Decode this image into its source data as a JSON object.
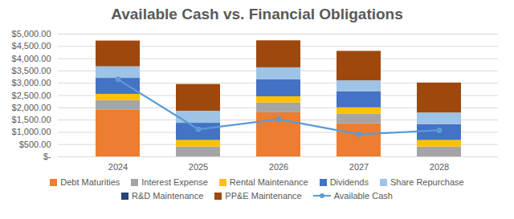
{
  "chart_data": {
    "type": "bar",
    "title": "Available Cash vs. Financial Obligations",
    "stacked": true,
    "grid": true,
    "legend": "bottom",
    "categories": [
      "2024",
      "2025",
      "2026",
      "2027",
      "2028"
    ],
    "ylim": [
      0,
      5000
    ],
    "yticks": [
      {
        "value": 0,
        "label": "$-"
      },
      {
        "value": 500,
        "label": "$500.00"
      },
      {
        "value": 1000,
        "label": "$1,000.00"
      },
      {
        "value": 1500,
        "label": "$1,500.00"
      },
      {
        "value": 2000,
        "label": "$2,000.00"
      },
      {
        "value": 2500,
        "label": "$2,500.00"
      },
      {
        "value": 3000,
        "label": "$3,000.00"
      },
      {
        "value": 3500,
        "label": "$3,500.00"
      },
      {
        "value": 4000,
        "label": "$4,000.00"
      },
      {
        "value": 4500,
        "label": "$4,500.00"
      },
      {
        "value": 5000,
        "label": "$5,000.00"
      }
    ],
    "series": [
      {
        "name": "Debt Maturities",
        "color": "#ED7D31",
        "values": [
          1900,
          0,
          1800,
          1350,
          0
        ]
      },
      {
        "name": "Interest Expense",
        "color": "#A5A5A5",
        "values": [
          400,
          400,
          400,
          400,
          400
        ]
      },
      {
        "name": "Rental Maintenance",
        "color": "#FFC000",
        "values": [
          250,
          270,
          250,
          250,
          270
        ]
      },
      {
        "name": "Dividends",
        "color": "#4472C4",
        "values": [
          650,
          700,
          700,
          650,
          650
        ]
      },
      {
        "name": "Share Repurchase",
        "color": "#9DC3E6",
        "values": [
          470,
          490,
          480,
          450,
          470
        ]
      },
      {
        "name": "R&D Maintenance",
        "color": "#264478",
        "values": [
          0,
          0,
          0,
          0,
          0
        ]
      },
      {
        "name": "PP&E Maintenance",
        "color": "#9E480E",
        "values": [
          1050,
          1090,
          1100,
          1200,
          1220
        ]
      },
      {
        "name": "Available Cash",
        "color": "#5B9BD5",
        "type": "line",
        "marker": "circle",
        "values": [
          3150,
          1120,
          1530,
          920,
          1080
        ]
      }
    ]
  }
}
